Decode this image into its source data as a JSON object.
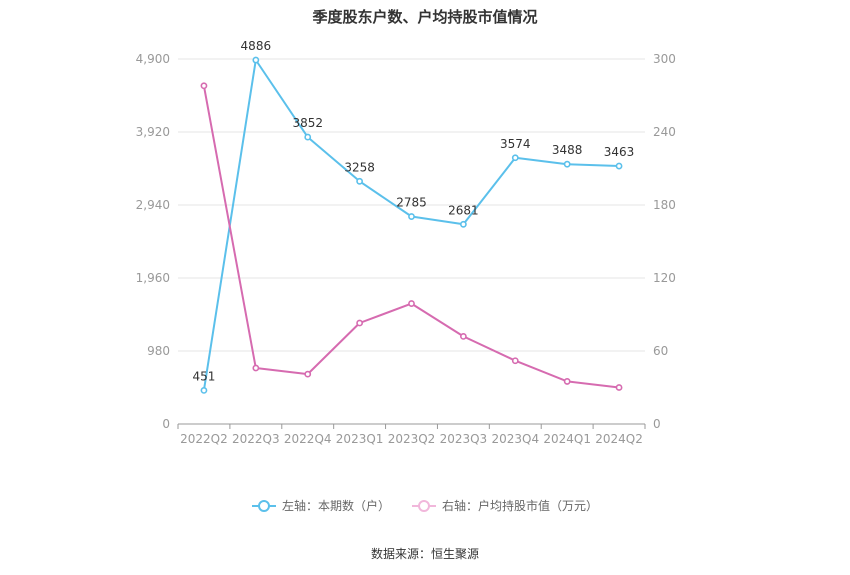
{
  "chart_data": {
    "type": "line",
    "title": "季度股东户数、户均持股市值情况",
    "categories": [
      "2022Q2",
      "2022Q3",
      "2022Q4",
      "2023Q1",
      "2023Q2",
      "2023Q3",
      "2023Q4",
      "2024Q1",
      "2024Q2"
    ],
    "y_left": {
      "ticks": [
        0,
        980,
        1960,
        2940,
        3920,
        4900
      ],
      "tick_labels": [
        "0",
        "980",
        "1,960",
        "2,940",
        "3,920",
        "4,900"
      ],
      "ylim": [
        0,
        4900
      ]
    },
    "y_right": {
      "ticks": [
        0,
        60,
        120,
        180,
        240,
        300
      ],
      "tick_labels": [
        "0",
        "60",
        "120",
        "180",
        "240",
        "300"
      ],
      "ylim": [
        0,
        300
      ]
    },
    "series": [
      {
        "name": "左轴：本期数（户）",
        "axis": "left",
        "color": "#5bc0eb",
        "values": [
          451,
          4886,
          3852,
          3258,
          2785,
          2681,
          3574,
          3488,
          3463
        ],
        "labels": [
          "451",
          "4886",
          "3852",
          "3258",
          "2785",
          "2681",
          "3574",
          "3488",
          "3463"
        ]
      },
      {
        "name": "右轴：户均持股市值（万元）",
        "axis": "right",
        "color": "#d66bb0",
        "values": [
          278,
          46,
          41,
          83,
          99,
          72,
          52,
          35,
          30
        ]
      }
    ],
    "grid": true,
    "legend_position": "bottom"
  },
  "source_text": "数据来源：恒生聚源"
}
